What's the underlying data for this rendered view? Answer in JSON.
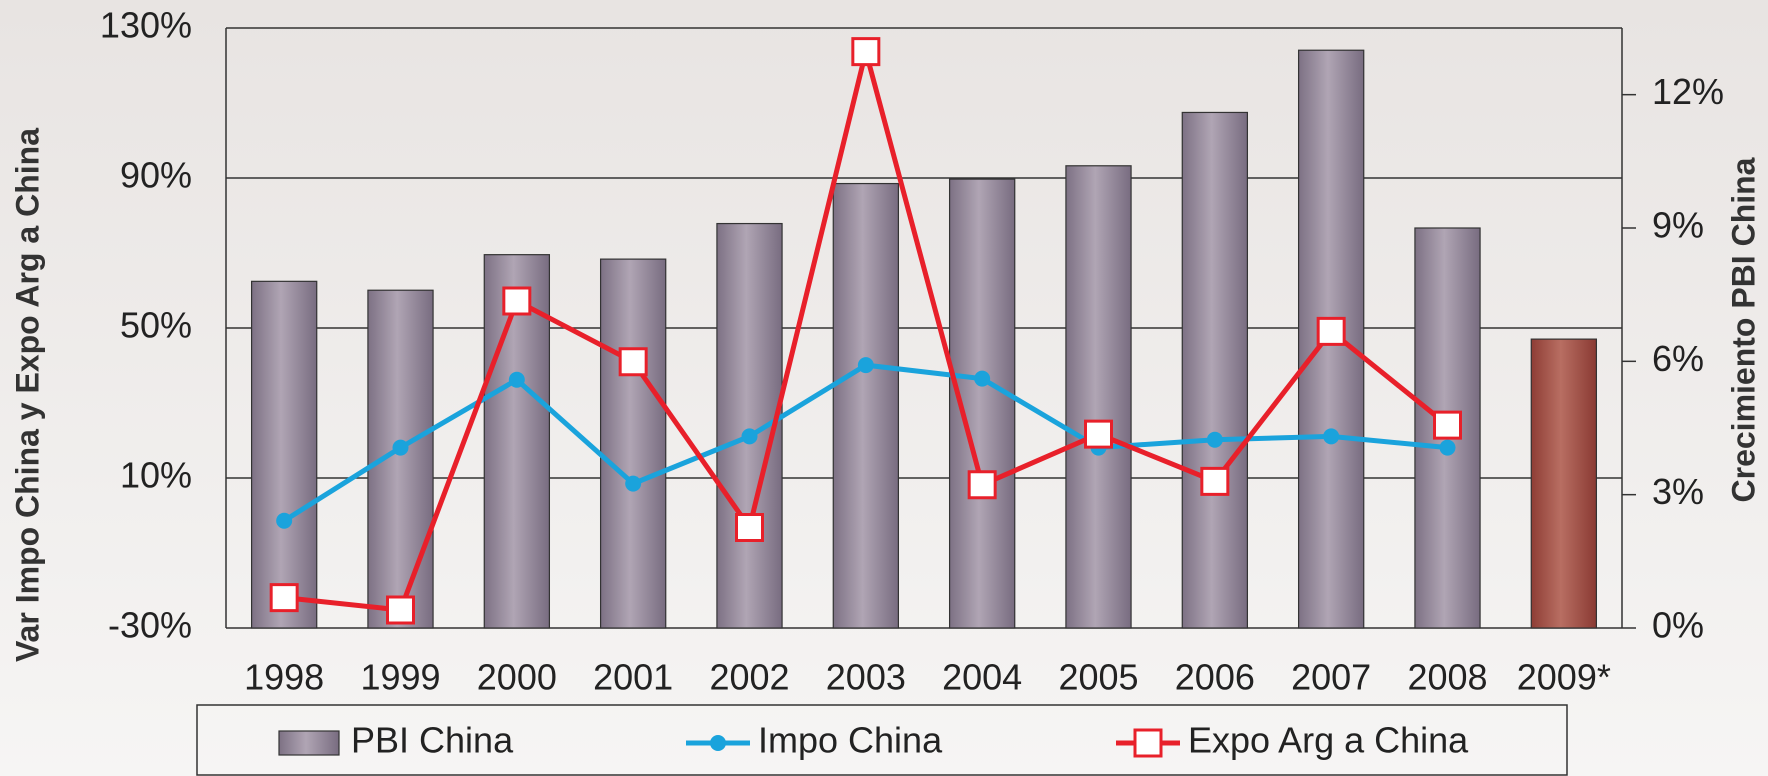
{
  "chart_data": {
    "type": "bar-line",
    "categories": [
      "1998",
      "1999",
      "2000",
      "2001",
      "2002",
      "2003",
      "2004",
      "2005",
      "2006",
      "2007",
      "2008",
      "2009*"
    ],
    "y_label": "Var Impo China y Expo Arg a China",
    "y2_label": "Crecimiento PBI China",
    "ylim": [
      -30,
      130
    ],
    "yticks": [
      {
        "value": -30,
        "label": "-30%"
      },
      {
        "value": 10,
        "label": "10%"
      },
      {
        "value": 50,
        "label": "50%"
      },
      {
        "value": 90,
        "label": "90%"
      },
      {
        "value": 130,
        "label": "130%"
      }
    ],
    "y2lim": [
      0,
      13.5
    ],
    "y2ticks": [
      {
        "value": 0,
        "label": "0%"
      },
      {
        "value": 3,
        "label": "3%"
      },
      {
        "value": 6,
        "label": "6%"
      },
      {
        "value": 9,
        "label": "9%"
      },
      {
        "value": 12,
        "label": "12%"
      }
    ],
    "grid": true,
    "series": [
      {
        "name": "PBI China",
        "type": "bar",
        "axis": "y2",
        "color": "#9a8e9e",
        "point_colors": [
          "#9a8e9e",
          "#9a8e9e",
          "#9a8e9e",
          "#9a8e9e",
          "#9a8e9e",
          "#9a8e9e",
          "#9a8e9e",
          "#9a8e9e",
          "#9a8e9e",
          "#9a8e9e",
          "#9a8e9e",
          "#a45a50"
        ],
        "values": [
          7.8,
          7.6,
          8.4,
          8.3,
          9.1,
          10.0,
          10.1,
          10.4,
          11.6,
          13.0,
          9.0,
          6.5
        ]
      },
      {
        "name": "Impo China",
        "type": "line",
        "color": "#1aa3dc",
        "marker": "circle",
        "values": [
          -1.4,
          18.1,
          36.2,
          8.5,
          21.1,
          40.1,
          36.5,
          18.1,
          20.2,
          21.1,
          18.1,
          null
        ]
      },
      {
        "name": "Expo Arg a China",
        "type": "line",
        "color": "#e8202a",
        "marker": "square",
        "values": [
          -21.9,
          -25.2,
          57.2,
          41.0,
          -3.2,
          123.7,
          8.2,
          21.7,
          9.1,
          49.1,
          24.1,
          null
        ]
      }
    ]
  }
}
